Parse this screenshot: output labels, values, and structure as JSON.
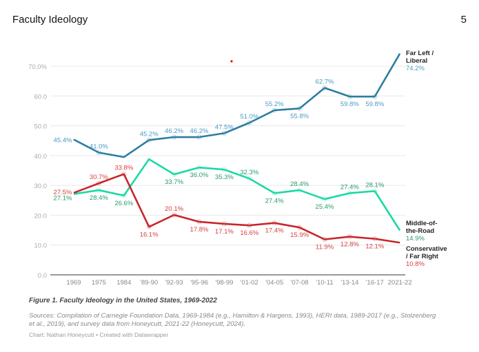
{
  "page": {
    "title": "Faculty Ideology",
    "page_number": "5"
  },
  "chart_data": {
    "type": "line",
    "title": "",
    "xlabel": "",
    "ylabel": "",
    "categories": [
      "1969",
      "1975",
      "1984",
      "'89-90",
      "'92-93",
      "'95-96",
      "'98-99",
      "'01-02",
      "'04-05",
      "'07-08",
      "'10-11",
      "'13-14",
      "'16-17",
      "2021-22"
    ],
    "y_ticks": [
      "0.0",
      "10.0",
      "20.0",
      "30.0",
      "40.0",
      "50.0",
      "60.0",
      "70.0%"
    ],
    "ylim": [
      0,
      70
    ],
    "grid": true,
    "legend": "direct labels at line ends (right)",
    "series": [
      {
        "name": "Far Left / Liberal",
        "name_lines": [
          "Far Left /",
          "Liberal"
        ],
        "end_label": "74.2%",
        "color": "#2b7ea1",
        "label_color": "#4a9cc2",
        "values": [
          45.4,
          41.0,
          39.5,
          45.2,
          46.2,
          46.2,
          47.5,
          51.0,
          55.2,
          55.8,
          62.7,
          59.8,
          59.8,
          74.2
        ],
        "labels": [
          "45.4%",
          "41.0%",
          "",
          "45.2%",
          "46.2%",
          "46.2%",
          "47.5%",
          "51.0%",
          "55.2%",
          "55.8%",
          "62.7%",
          "59.8%",
          "59.8%",
          ""
        ]
      },
      {
        "name": "Middle-of-the-Road",
        "name_lines": [
          "Middle-of-",
          "the-Road"
        ],
        "end_label": "14.9%",
        "color": "#1ad9a3",
        "label_color": "#2a9a6c",
        "values": [
          27.1,
          28.4,
          26.6,
          38.8,
          33.7,
          36.0,
          35.3,
          32.3,
          27.4,
          28.4,
          25.4,
          27.4,
          28.1,
          14.9
        ],
        "labels": [
          "27.1%",
          "28.4%",
          "26.6%",
          "",
          "33.7%",
          "36.0%",
          "35.3%",
          "32.3%",
          "27.4%",
          "28.4%",
          "25.4%",
          "27.4%",
          "28.1%",
          ""
        ]
      },
      {
        "name": "Conservative / Far Right",
        "name_lines": [
          "Conservative",
          "/ Far Right"
        ],
        "end_label": "10.8%",
        "color": "#c8262a",
        "label_color": "#d9403f",
        "values": [
          27.5,
          30.7,
          33.8,
          16.1,
          20.1,
          17.8,
          17.1,
          16.6,
          17.4,
          15.9,
          11.9,
          12.8,
          12.1,
          10.8
        ],
        "labels": [
          "27.5%",
          "30.7%",
          "33.8%",
          "16.1%",
          "20.1%",
          "17.8%",
          "17.1%",
          "16.6%",
          "17.4%",
          "15.9%",
          "11.9%",
          "12.8%",
          "12.1%",
          ""
        ]
      }
    ]
  },
  "caption": "Figure 1. Faculty Ideology in the United States, 1969-2022",
  "sources": "Sources: Compilation of Carnegie Foundation Data, 1969-1984 (e.g., Hamilton & Hargens, 1993), HERI data, 1989-2017 (e.g., Stolzenberg et al., 2019), and survey data from Honeycutt, 2021-22 (Honeycutt, 2024).",
  "credit": "Chart: Nathan Honeycutt • Created with Datawrapper"
}
